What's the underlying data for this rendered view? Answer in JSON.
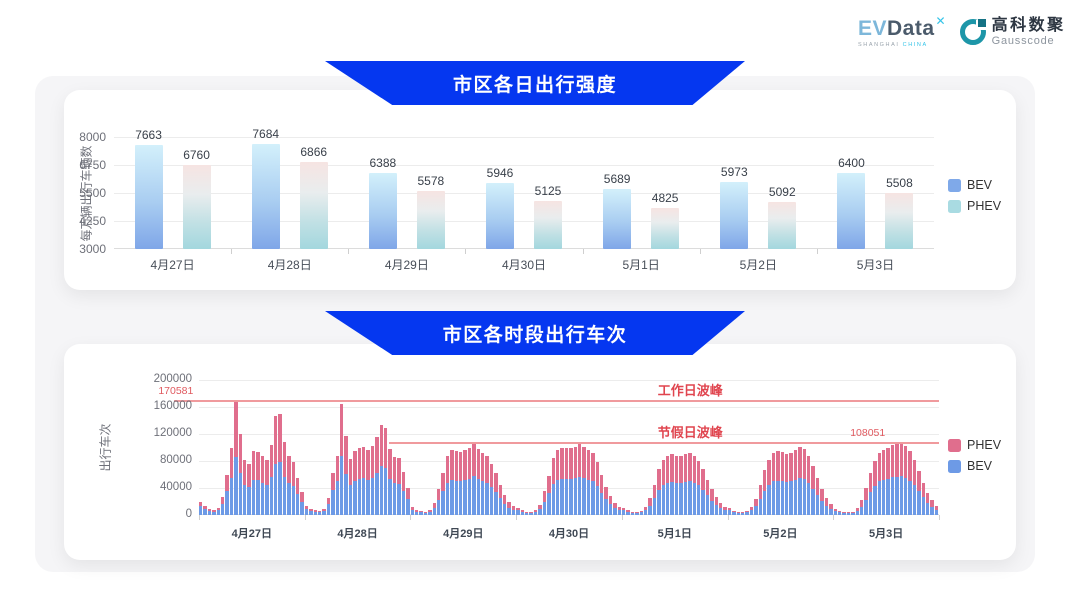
{
  "header": {
    "evdata": {
      "ev": "EV",
      "data": "Data",
      "x": "✕",
      "sub1": "SHANGHAI ",
      "sub2": "CHINA"
    },
    "gausscode": {
      "cn": "高科数聚",
      "en": "Gausscode"
    }
  },
  "chart_data": [
    {
      "type": "bar",
      "title": "市区各日出行强度",
      "ylabel": "每万辆出行车辆数",
      "xlabel": "",
      "categories": [
        "4月27日",
        "4月28日",
        "4月29日",
        "4月30日",
        "5月1日",
        "5月2日",
        "5月3日"
      ],
      "series": [
        {
          "name": "BEV",
          "values": [
            7663,
            7684,
            6388,
            5946,
            5689,
            5973,
            6400
          ]
        },
        {
          "name": "PHEV",
          "values": [
            6760,
            6866,
            5578,
            5125,
            4825,
            5092,
            5508
          ]
        }
      ],
      "ylim": [
        3000,
        8000
      ],
      "yticks": [
        3000,
        4250,
        5500,
        6750,
        8000
      ],
      "grid": true,
      "legend_position": "right",
      "legend_order": [
        "BEV",
        "PHEV"
      ],
      "legend_colors": {
        "BEV": "#7fa9e9",
        "PHEV": "#a9dbe2"
      }
    },
    {
      "type": "bar",
      "subtype": "stacked-hourly",
      "title": "市区各时段出行车次",
      "ylabel": "出行车次",
      "xlabel": "",
      "ylim": [
        0,
        200000
      ],
      "yticks": [
        0,
        40000,
        80000,
        120000,
        160000,
        200000
      ],
      "grid": true,
      "legend_position": "right",
      "legend_order": [
        "PHEV",
        "BEV"
      ],
      "legend_colors": {
        "PHEV": "#e06e8d",
        "BEV": "#6d9ae6"
      },
      "peak_lines": [
        {
          "label": "工作日波峰",
          "value": 170581,
          "annotation": "170581"
        },
        {
          "label": "节假日波峰",
          "value": 108051,
          "annotation": "108051"
        }
      ],
      "days": [
        {
          "label": "4月27日",
          "bev": [
            13000,
            9000,
            6000,
            5000,
            7000,
            17000,
            36000,
            55000,
            86000,
            62000,
            44000,
            42000,
            52000,
            52000,
            48000,
            45000,
            56000,
            76000,
            78000,
            57000,
            48000,
            43000,
            31000,
            20000
          ],
          "phev": [
            7000,
            4000,
            3000,
            2000,
            3000,
            10000,
            24000,
            45000,
            84581,
            58000,
            37000,
            34000,
            43000,
            42000,
            39000,
            37000,
            48000,
            70000,
            71000,
            51000,
            40000,
            36000,
            24000,
            14000
          ]
        },
        {
          "label": "4月28日",
          "bev": [
            9000,
            6000,
            5000,
            4000,
            6000,
            16000,
            37000,
            50000,
            88000,
            61000,
            45000,
            51000,
            54000,
            55000,
            52000,
            55000,
            62000,
            72000,
            70000,
            53000,
            47000,
            46000,
            35000,
            23000
          ],
          "phev": [
            4000,
            3000,
            2000,
            2000,
            3000,
            9000,
            25000,
            38000,
            76000,
            56000,
            38000,
            44000,
            46000,
            46000,
            45000,
            47000,
            53000,
            61000,
            59000,
            45000,
            39000,
            38000,
            28000,
            17000
          ]
        },
        {
          "label": "4月29日",
          "bev": [
            8000,
            5000,
            4000,
            3000,
            5000,
            11000,
            22000,
            35000,
            48000,
            52000,
            51000,
            50000,
            52000,
            53000,
            58000,
            53000,
            50000,
            48000,
            42000,
            34000,
            25000,
            17000,
            11000,
            8000
          ],
          "phev": [
            4000,
            3000,
            2000,
            2000,
            3000,
            7000,
            16000,
            27000,
            40000,
            44000,
            44000,
            43000,
            45000,
            46000,
            50000,
            45000,
            42000,
            40000,
            34000,
            28000,
            20000,
            13000,
            9000,
            6000
          ]
        },
        {
          "label": "4月30日",
          "bev": [
            7000,
            5000,
            3000,
            3000,
            5000,
            9000,
            20000,
            32000,
            46000,
            52000,
            54000,
            53000,
            54000,
            55000,
            57000,
            55000,
            52000,
            50000,
            43000,
            33000,
            23000,
            16000,
            10000,
            7000
          ],
          "phev": [
            4000,
            2000,
            2000,
            2000,
            2000,
            6000,
            15000,
            26000,
            39000,
            45000,
            46000,
            46000,
            46000,
            46000,
            48000,
            46000,
            45000,
            42000,
            35000,
            27000,
            19000,
            12000,
            8000,
            5000
          ]
        },
        {
          "label": "5月1日",
          "bev": [
            7000,
            5000,
            3000,
            3000,
            4000,
            7000,
            14000,
            25000,
            37000,
            44000,
            48000,
            49000,
            48000,
            47000,
            49000,
            50000,
            48000,
            44000,
            37000,
            29000,
            21000,
            15000,
            10000,
            7000
          ],
          "phev": [
            3000,
            2000,
            2000,
            2000,
            2000,
            5000,
            11000,
            20000,
            31000,
            38000,
            40000,
            41000,
            40000,
            40000,
            41000,
            42000,
            40000,
            36000,
            31000,
            23000,
            17000,
            11000,
            8000,
            5000
          ]
        },
        {
          "label": "5月2日",
          "bev": [
            7000,
            4000,
            3000,
            3000,
            4000,
            7000,
            13000,
            24000,
            36000,
            44000,
            50000,
            51000,
            50000,
            49000,
            50000,
            52000,
            55000,
            53000,
            48000,
            39000,
            30000,
            21000,
            14000,
            9000
          ],
          "phev": [
            3000,
            2000,
            2000,
            1000,
            2000,
            5000,
            11000,
            20000,
            30000,
            38000,
            42000,
            44000,
            43000,
            41000,
            42000,
            45000,
            46000,
            45000,
            40000,
            33000,
            25000,
            17000,
            11000,
            7000
          ]
        },
        {
          "label": "5月3日",
          "bev": [
            6000,
            4000,
            3000,
            3000,
            3000,
            6000,
            12000,
            22000,
            34000,
            43000,
            50000,
            52000,
            54000,
            56000,
            57000,
            58000,
            55000,
            51000,
            45000,
            36000,
            27000,
            18000,
            12000,
            8000
          ],
          "phev": [
            3000,
            2000,
            1000,
            1000,
            2000,
            4000,
            10000,
            18000,
            28000,
            37000,
            42000,
            45000,
            46000,
            47000,
            48000,
            50051,
            47000,
            44000,
            37000,
            29000,
            21000,
            14000,
            10000,
            6000
          ]
        }
      ]
    }
  ]
}
